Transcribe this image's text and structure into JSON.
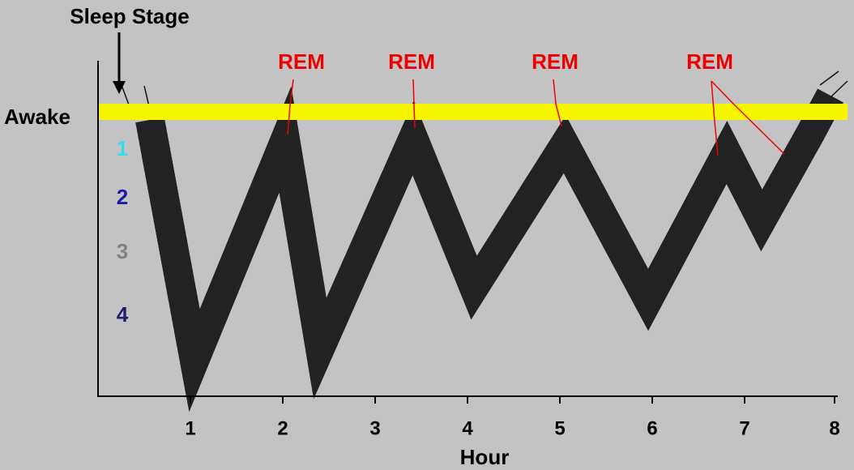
{
  "y_axis_title": "Sleep Stage",
  "x_axis_title": "Hour",
  "stages": [
    "Awake",
    "1",
    "2",
    "3",
    "4"
  ],
  "hours": [
    "1",
    "2",
    "3",
    "4",
    "5",
    "6",
    "7",
    "8"
  ],
  "rem_labels": [
    "REM",
    "REM",
    "REM",
    "REM"
  ]
}
